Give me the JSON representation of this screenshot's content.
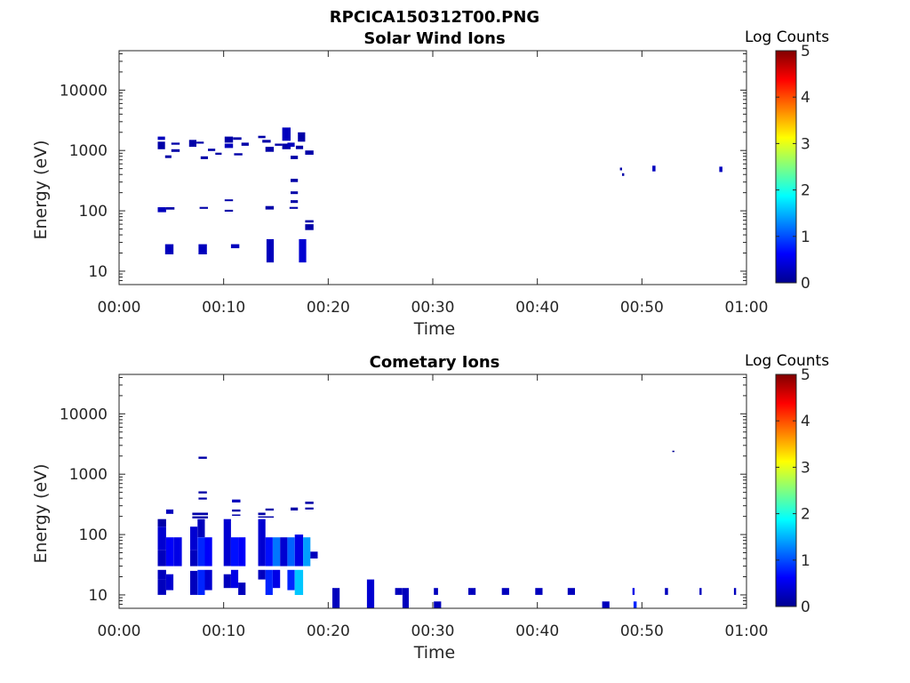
{
  "figure": {
    "title": "RPCICA150312T00.PNG"
  },
  "chart_data": [
    {
      "type": "heatmap",
      "title": "Solar Wind Ions",
      "xlabel": "Time",
      "ylabel": "Energy (eV)",
      "yscale": "log",
      "xlim_min": [
        0,
        60
      ],
      "ylim": [
        6,
        45000
      ],
      "xticks": [
        "00:00",
        "00:10",
        "00:20",
        "00:30",
        "00:40",
        "00:50",
        "01:00"
      ],
      "yticks": [
        "10",
        "100",
        "1000",
        "10000"
      ],
      "colorbar": {
        "label": "Log Counts",
        "range": [
          0,
          5
        ],
        "ticks": [
          "0",
          "1",
          "2",
          "3",
          "4",
          "5"
        ],
        "colormap": "jet"
      },
      "cells": [
        [
          3.7,
          4.4,
          1500,
          1700,
          0.3
        ],
        [
          3.7,
          4.4,
          1050,
          1400,
          0.2
        ],
        [
          4.4,
          5.0,
          750,
          830,
          0.2
        ],
        [
          5.0,
          5.8,
          1250,
          1350,
          0.2
        ],
        [
          5.0,
          5.8,
          950,
          1050,
          0.2
        ],
        [
          6.7,
          7.4,
          1150,
          1500,
          0.2
        ],
        [
          7.4,
          8.1,
          1300,
          1400,
          0.2
        ],
        [
          7.8,
          8.5,
          720,
          800,
          0.2
        ],
        [
          8.5,
          9.2,
          980,
          1070,
          0.2
        ],
        [
          9.2,
          9.8,
          850,
          920,
          0.2
        ],
        [
          10.1,
          10.9,
          1350,
          1700,
          0.2
        ],
        [
          10.1,
          10.9,
          1100,
          1300,
          0.3
        ],
        [
          10.9,
          11.7,
          1500,
          1650,
          0.2
        ],
        [
          11.0,
          11.8,
          830,
          900,
          0.2
        ],
        [
          11.7,
          12.4,
          1200,
          1350,
          0.2
        ],
        [
          13.3,
          14.0,
          1600,
          1750,
          0.2
        ],
        [
          13.7,
          14.5,
          1350,
          1500,
          0.2
        ],
        [
          14.0,
          14.8,
          950,
          1150,
          0.2
        ],
        [
          14.9,
          15.6,
          1200,
          1300,
          0.2
        ],
        [
          15.6,
          16.4,
          1450,
          2400,
          0.3
        ],
        [
          15.6,
          16.4,
          1050,
          1300,
          0.2
        ],
        [
          16.1,
          16.8,
          1150,
          1350,
          0.3
        ],
        [
          16.4,
          17.1,
          720,
          820,
          0.2
        ],
        [
          16.9,
          17.6,
          1050,
          1200,
          0.2
        ],
        [
          17.1,
          17.8,
          1400,
          2000,
          0.2
        ],
        [
          17.8,
          18.6,
          850,
          1000,
          0.2
        ],
        [
          16.4,
          17.1,
          300,
          340,
          0.2
        ],
        [
          16.4,
          17.1,
          190,
          210,
          0.2
        ],
        [
          16.4,
          17.1,
          135,
          150,
          0.2
        ],
        [
          10.1,
          10.9,
          145,
          155,
          0.2
        ],
        [
          3.7,
          4.5,
          95,
          115,
          0.3
        ],
        [
          4.5,
          5.3,
          105,
          115,
          0.2
        ],
        [
          7.7,
          8.5,
          108,
          116,
          0.2
        ],
        [
          10.1,
          10.9,
          97,
          104,
          0.2
        ],
        [
          14.0,
          14.8,
          105,
          120,
          0.2
        ],
        [
          16.3,
          17.1,
          108,
          116,
          0.2
        ],
        [
          17.8,
          18.6,
          64,
          70,
          0.2
        ],
        [
          17.8,
          18.6,
          48,
          60,
          0.2
        ],
        [
          4.4,
          5.2,
          19,
          28,
          0.3
        ],
        [
          7.6,
          8.4,
          19,
          28,
          0.3
        ],
        [
          10.7,
          11.5,
          24,
          28,
          0.3
        ],
        [
          14.1,
          14.8,
          14,
          34,
          0.3
        ],
        [
          17.2,
          17.9,
          14,
          34,
          0.4
        ],
        [
          47.9,
          48.1,
          470,
          520,
          0.2
        ],
        [
          48.1,
          48.3,
          380,
          420,
          0.2
        ],
        [
          51.0,
          51.3,
          450,
          560,
          0.3
        ],
        [
          57.4,
          57.7,
          440,
          540,
          0.3
        ]
      ]
    },
    {
      "type": "heatmap",
      "title": "Cometary Ions",
      "xlabel": "Time",
      "ylabel": "Energy (eV)",
      "yscale": "log",
      "xlim_min": [
        0,
        60
      ],
      "ylim": [
        6,
        45000
      ],
      "xticks": [
        "00:00",
        "00:10",
        "00:20",
        "00:30",
        "00:40",
        "00:50",
        "01:00"
      ],
      "yticks": [
        "10",
        "100",
        "1000",
        "10000"
      ],
      "colorbar": {
        "label": "Log Counts",
        "range": [
          0,
          5
        ],
        "ticks": [
          "0",
          "1",
          "2",
          "3",
          "4",
          "5"
        ],
        "colormap": "jet"
      },
      "cells": [
        [
          3.7,
          4.5,
          135,
          180,
          0.2
        ],
        [
          3.7,
          4.5,
          55,
          135,
          0.4
        ],
        [
          3.7,
          4.5,
          30,
          55,
          0.3
        ],
        [
          3.7,
          4.5,
          18,
          26,
          0.3
        ],
        [
          3.7,
          4.5,
          10,
          18,
          0.3
        ],
        [
          4.5,
          5.2,
          220,
          260,
          0.3
        ],
        [
          4.5,
          5.2,
          30,
          90,
          0.6
        ],
        [
          4.5,
          5.2,
          12,
          22,
          0.4
        ],
        [
          5.2,
          6.0,
          30,
          90,
          0.5
        ],
        [
          6.8,
          7.5,
          55,
          135,
          0.4
        ],
        [
          6.8,
          7.5,
          30,
          55,
          0.3
        ],
        [
          6.8,
          7.5,
          10,
          25,
          0.3
        ],
        [
          7.5,
          8.2,
          90,
          180,
          0.3
        ],
        [
          7.5,
          8.2,
          30,
          90,
          0.8
        ],
        [
          7.5,
          8.2,
          10,
          26,
          0.8
        ],
        [
          8.2,
          8.9,
          30,
          90,
          0.6
        ],
        [
          8.2,
          8.9,
          12,
          26,
          0.4
        ],
        [
          7.6,
          8.4,
          1800,
          1950,
          0.2
        ],
        [
          7.6,
          8.4,
          480,
          520,
          0.2
        ],
        [
          7.6,
          8.4,
          380,
          410,
          0.2
        ],
        [
          7.0,
          8.5,
          210,
          230,
          0.2
        ],
        [
          7.0,
          8.5,
          185,
          200,
          0.2
        ],
        [
          10.0,
          10.7,
          30,
          180,
          0.4
        ],
        [
          10.0,
          10.7,
          13,
          22,
          0.3
        ],
        [
          10.7,
          11.4,
          30,
          90,
          0.7
        ],
        [
          10.7,
          11.4,
          13,
          26,
          0.5
        ],
        [
          11.4,
          12.1,
          30,
          90,
          0.6
        ],
        [
          11.4,
          12.1,
          10,
          16,
          0.3
        ],
        [
          10.8,
          11.6,
          340,
          380,
          0.3
        ],
        [
          10.8,
          11.6,
          240,
          260,
          0.2
        ],
        [
          10.8,
          11.6,
          205,
          215,
          0.2
        ],
        [
          13.3,
          14.0,
          30,
          180,
          0.4
        ],
        [
          13.3,
          14.0,
          18,
          26,
          0.3
        ],
        [
          13.3,
          14.0,
          210,
          230,
          0.2
        ],
        [
          13.3,
          14.8,
          190,
          200,
          0.2
        ],
        [
          14.0,
          14.7,
          30,
          90,
          0.7
        ],
        [
          14.0,
          14.7,
          10,
          26,
          0.8
        ],
        [
          14.7,
          15.4,
          30,
          90,
          1.2
        ],
        [
          14.7,
          15.4,
          13,
          26,
          0.5
        ],
        [
          15.4,
          16.1,
          30,
          90,
          0.4
        ],
        [
          16.1,
          16.8,
          30,
          90,
          1.1
        ],
        [
          16.1,
          16.8,
          12,
          26,
          0.8
        ],
        [
          16.8,
          17.6,
          30,
          100,
          0.5
        ],
        [
          16.8,
          17.6,
          10,
          26,
          1.6
        ],
        [
          17.6,
          18.3,
          30,
          90,
          1.4
        ],
        [
          18.3,
          19.0,
          40,
          52,
          0.3
        ],
        [
          14.0,
          14.8,
          250,
          270,
          0.2
        ],
        [
          16.4,
          17.1,
          250,
          280,
          0.2
        ],
        [
          17.8,
          18.6,
          320,
          350,
          0.2
        ],
        [
          17.8,
          18.6,
          260,
          280,
          0.2
        ],
        [
          20.4,
          21.1,
          6,
          13,
          0.3
        ],
        [
          23.7,
          24.4,
          6,
          18,
          0.4
        ],
        [
          26.4,
          27.1,
          10,
          13,
          0.3
        ],
        [
          27.1,
          27.7,
          6,
          13,
          0.3
        ],
        [
          30.1,
          30.8,
          6,
          7.8,
          0.3
        ],
        [
          30.1,
          30.5,
          10,
          13,
          0.3
        ],
        [
          33.4,
          34.1,
          10,
          13,
          0.3
        ],
        [
          36.6,
          37.3,
          10,
          13,
          0.3
        ],
        [
          39.8,
          40.5,
          10,
          13,
          0.3
        ],
        [
          42.9,
          43.6,
          10,
          13,
          0.3
        ],
        [
          46.2,
          46.9,
          6,
          7.8,
          0.3
        ],
        [
          49.2,
          49.5,
          6,
          7.8,
          0.8
        ],
        [
          49.1,
          49.3,
          10,
          13,
          0.5
        ],
        [
          52.2,
          52.5,
          10,
          13,
          0.3
        ],
        [
          55.5,
          55.7,
          10,
          13,
          0.3
        ],
        [
          58.8,
          59.0,
          10,
          13,
          0.3
        ],
        [
          52.9,
          53.1,
          2350,
          2450,
          0.1
        ]
      ]
    }
  ]
}
